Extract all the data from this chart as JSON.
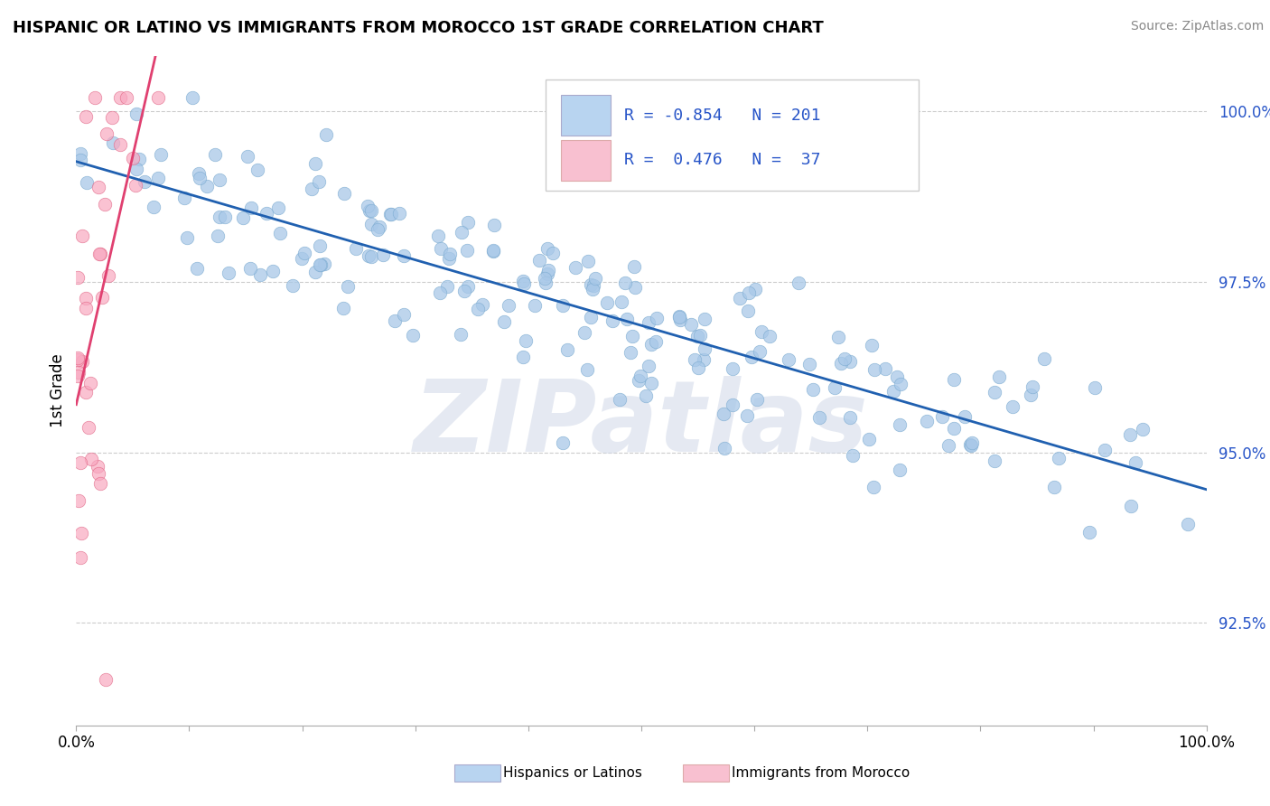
{
  "title": "HISPANIC OR LATINO VS IMMIGRANTS FROM MOROCCO 1ST GRADE CORRELATION CHART",
  "source_text": "Source: ZipAtlas.com",
  "ylabel": "1st Grade",
  "xlim": [
    0.0,
    1.0
  ],
  "ylim": [
    0.91,
    1.008
  ],
  "yticks": [
    0.925,
    0.95,
    0.975,
    1.0
  ],
  "ytick_labels": [
    "92.5%",
    "95.0%",
    "97.5%",
    "100.0%"
  ],
  "xtick_labels": [
    "0.0%",
    "100.0%"
  ],
  "legend_labels": [
    "Hispanics or Latinos",
    "Immigrants from Morocco"
  ],
  "blue_R": -0.854,
  "blue_N": 201,
  "pink_R": 0.476,
  "pink_N": 37,
  "blue_color": "#a8c8e8",
  "blue_edge_color": "#7aaad0",
  "blue_line_color": "#2060b0",
  "pink_color": "#f8a8c0",
  "pink_edge_color": "#e06080",
  "pink_line_color": "#e04070",
  "blue_legend_color": "#b8d4f0",
  "pink_legend_color": "#f8c0d0",
  "text_color": "#2855c8",
  "background_color": "#ffffff",
  "watermark": "ZIPatlas",
  "grid_color": "#cccccc",
  "blue_seed": 42,
  "pink_seed": 17
}
